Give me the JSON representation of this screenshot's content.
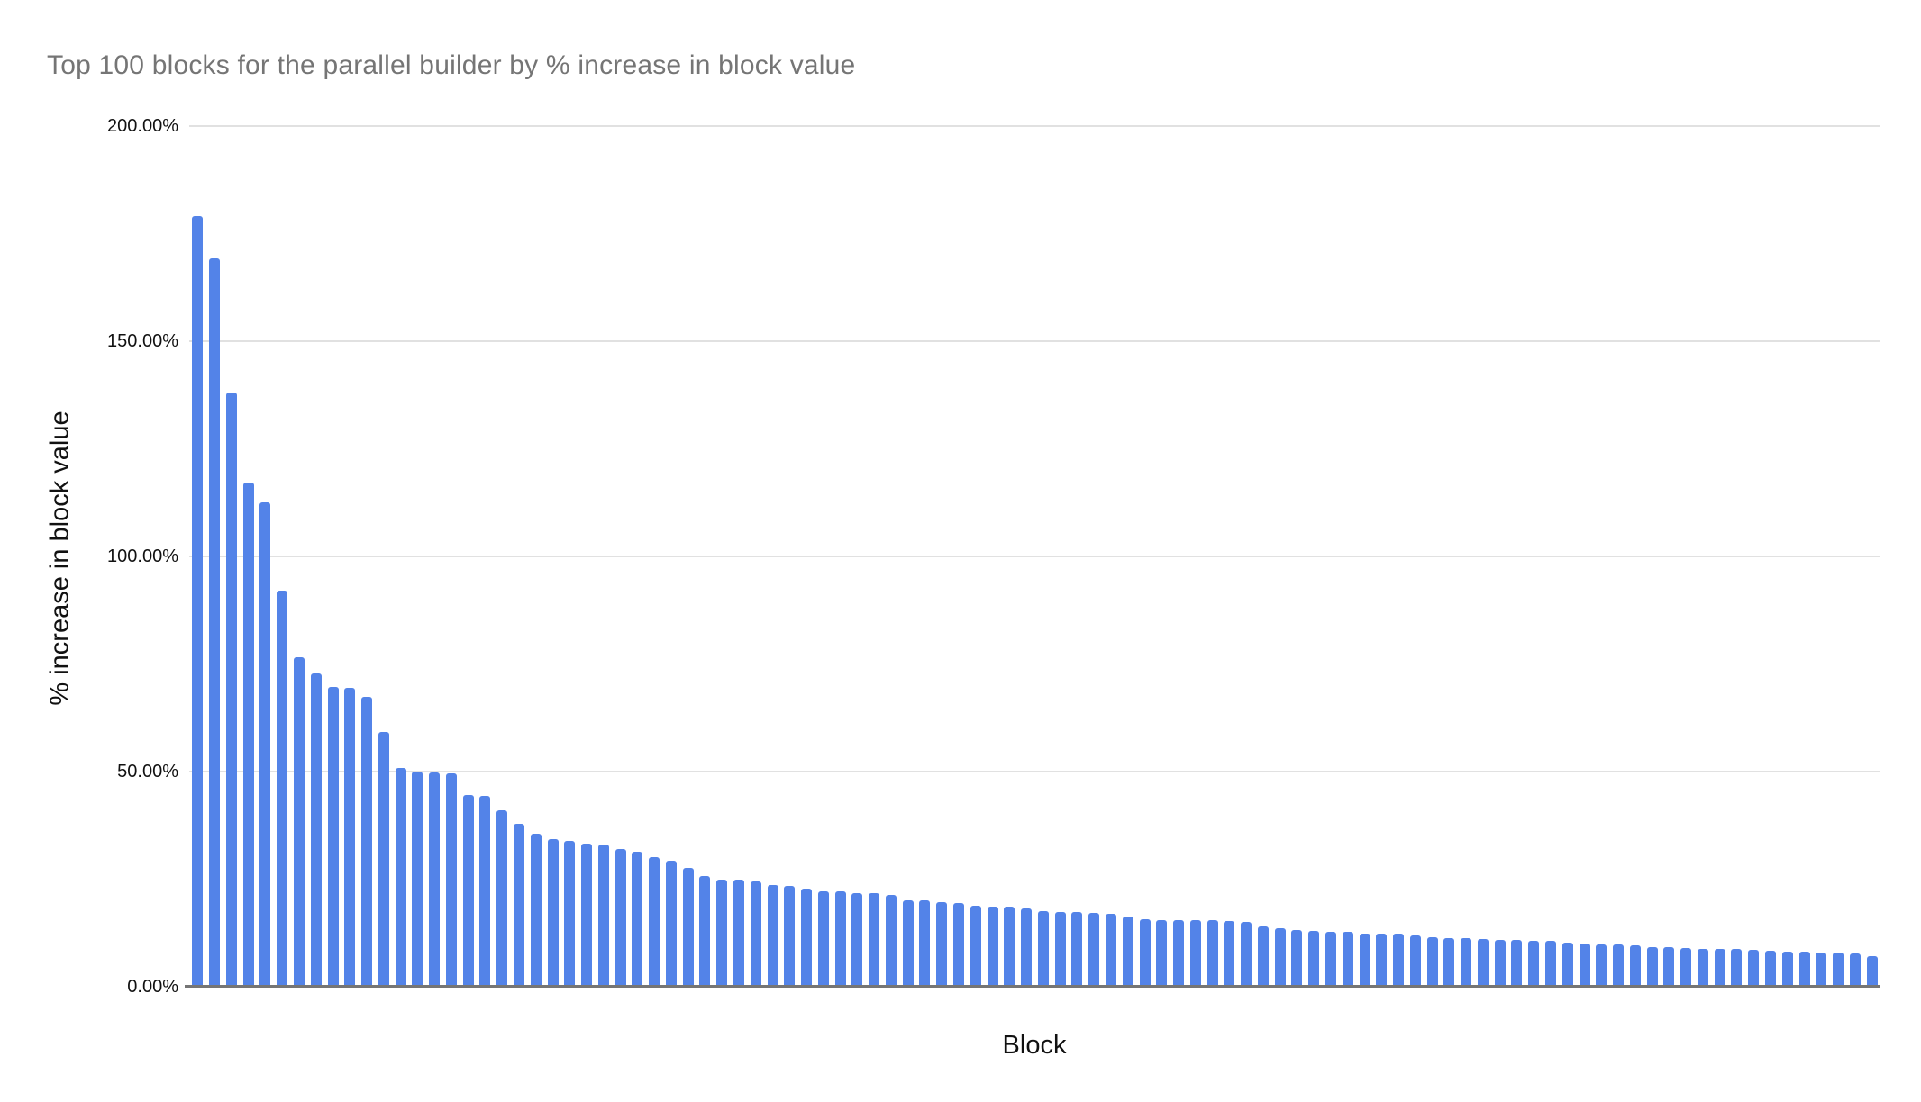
{
  "chart_data": {
    "type": "bar",
    "title": "Top 100 blocks for the parallel builder by % increase in block value",
    "xlabel": "Block",
    "ylabel": "% increase in block value",
    "ylim": [
      0,
      200
    ],
    "unit": "%",
    "legend": "none",
    "grid": "horizontal",
    "x_tick_labels_visible": false,
    "num_bars": 100,
    "y_ticks": [
      {
        "label": "0.00%",
        "value": 0
      },
      {
        "label": "50.00%",
        "value": 50
      },
      {
        "label": "100.00%",
        "value": 100
      },
      {
        "label": "150.00%",
        "value": 150
      },
      {
        "label": "200.00%",
        "value": 200
      }
    ],
    "values": [
      179,
      169.3,
      138,
      117.2,
      112.6,
      92,
      76.5,
      72.8,
      69.6,
      69.4,
      67.4,
      59.3,
      50.8,
      50.1,
      49.7,
      49.5,
      44.5,
      44.3,
      41,
      37.8,
      35.5,
      34.3,
      33.9,
      33.3,
      33.1,
      32,
      31.4,
      30.2,
      29.2,
      27.7,
      25.8,
      24.9,
      24.9,
      24.4,
      23.7,
      23.5,
      22.8,
      22.1,
      22.1,
      21.8,
      21.8,
      21.4,
      20,
      20,
      19.7,
      19.4,
      18.8,
      18.7,
      18.7,
      18.1,
      17.6,
      17.4,
      17.3,
      17.1,
      17,
      16.4,
      15.7,
      15.5,
      15.4,
      15.4,
      15.4,
      15.3,
      15,
      14.1,
      13.7,
      13.1,
      12.9,
      12.8,
      12.8,
      12.4,
      12.4,
      12.3,
      11.9,
      11.6,
      11.4,
      11.3,
      11,
      10.9,
      10.9,
      10.7,
      10.7,
      10.2,
      10,
      9.8,
      9.8,
      9.7,
      9.3,
      9.3,
      8.9,
      8.8,
      8.8,
      8.7,
      8.6,
      8.3,
      8.1,
      8.1,
      7.9,
      7.9,
      7.7,
      7.2
    ],
    "colors": {
      "bar": "#5383e8",
      "gridline": "#e1e1e1",
      "axis_line": "#757575",
      "title_text": "#757575",
      "tick_text": "#111111",
      "background": "#ffffff"
    }
  }
}
